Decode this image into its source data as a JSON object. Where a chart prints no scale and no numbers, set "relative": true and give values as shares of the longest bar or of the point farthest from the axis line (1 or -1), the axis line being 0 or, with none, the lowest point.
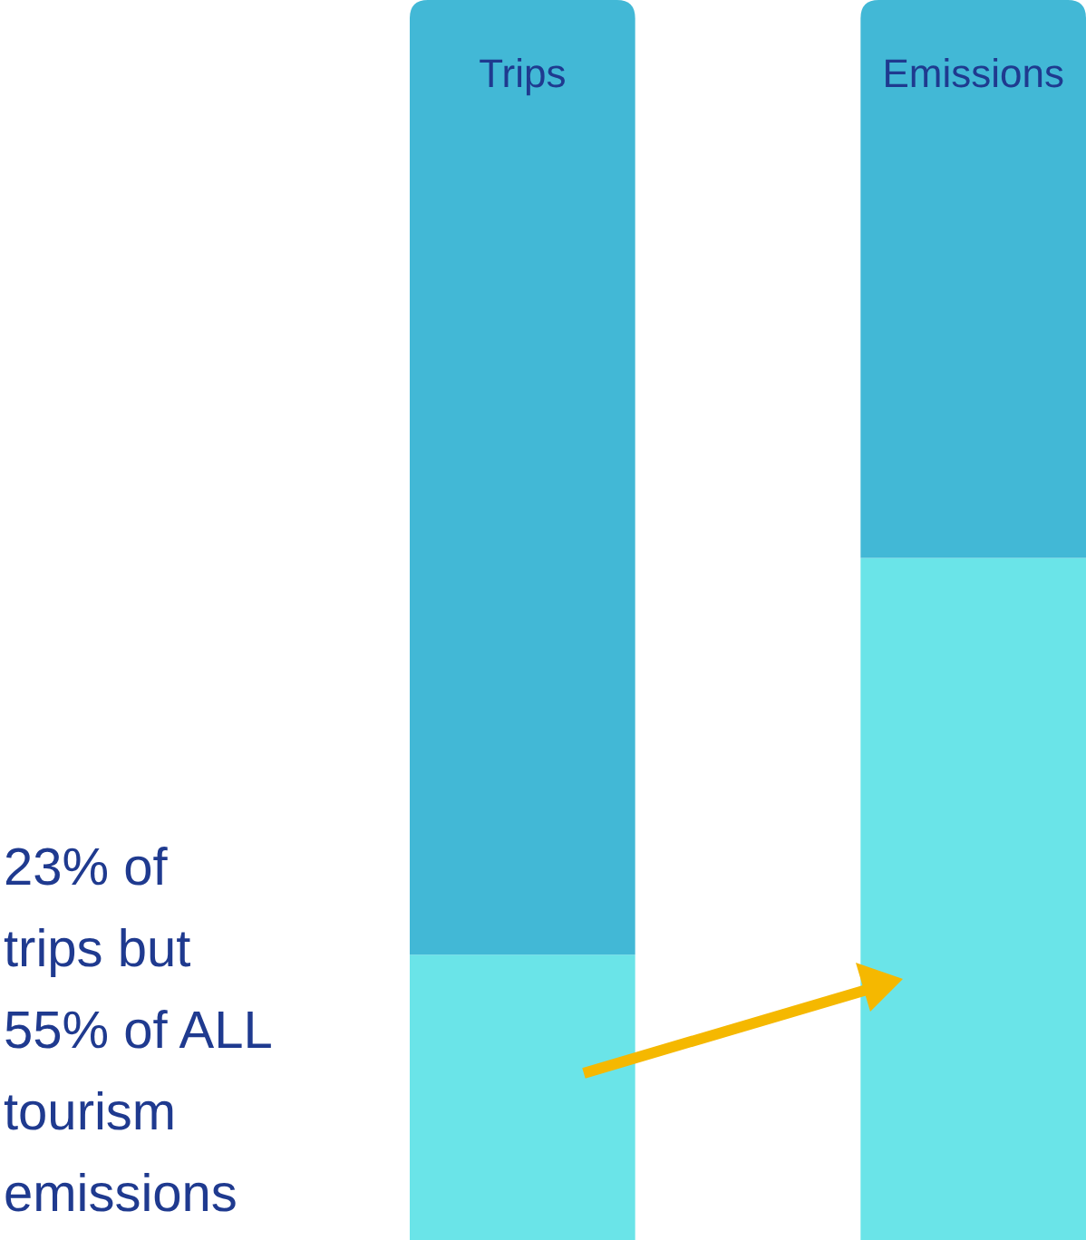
{
  "chart_data": {
    "type": "bar",
    "stacked": true,
    "relative": true,
    "categories": [
      "Trips",
      "Emissions"
    ],
    "series": [
      {
        "color": "#6ae4e8",
        "values": [
          0.23,
          0.55
        ]
      },
      {
        "color": "#42b8d6",
        "values": [
          0.77,
          0.45
        ]
      }
    ],
    "annotations": [
      "23% of trips but 55% of ALL tourism emissions"
    ]
  }
}
